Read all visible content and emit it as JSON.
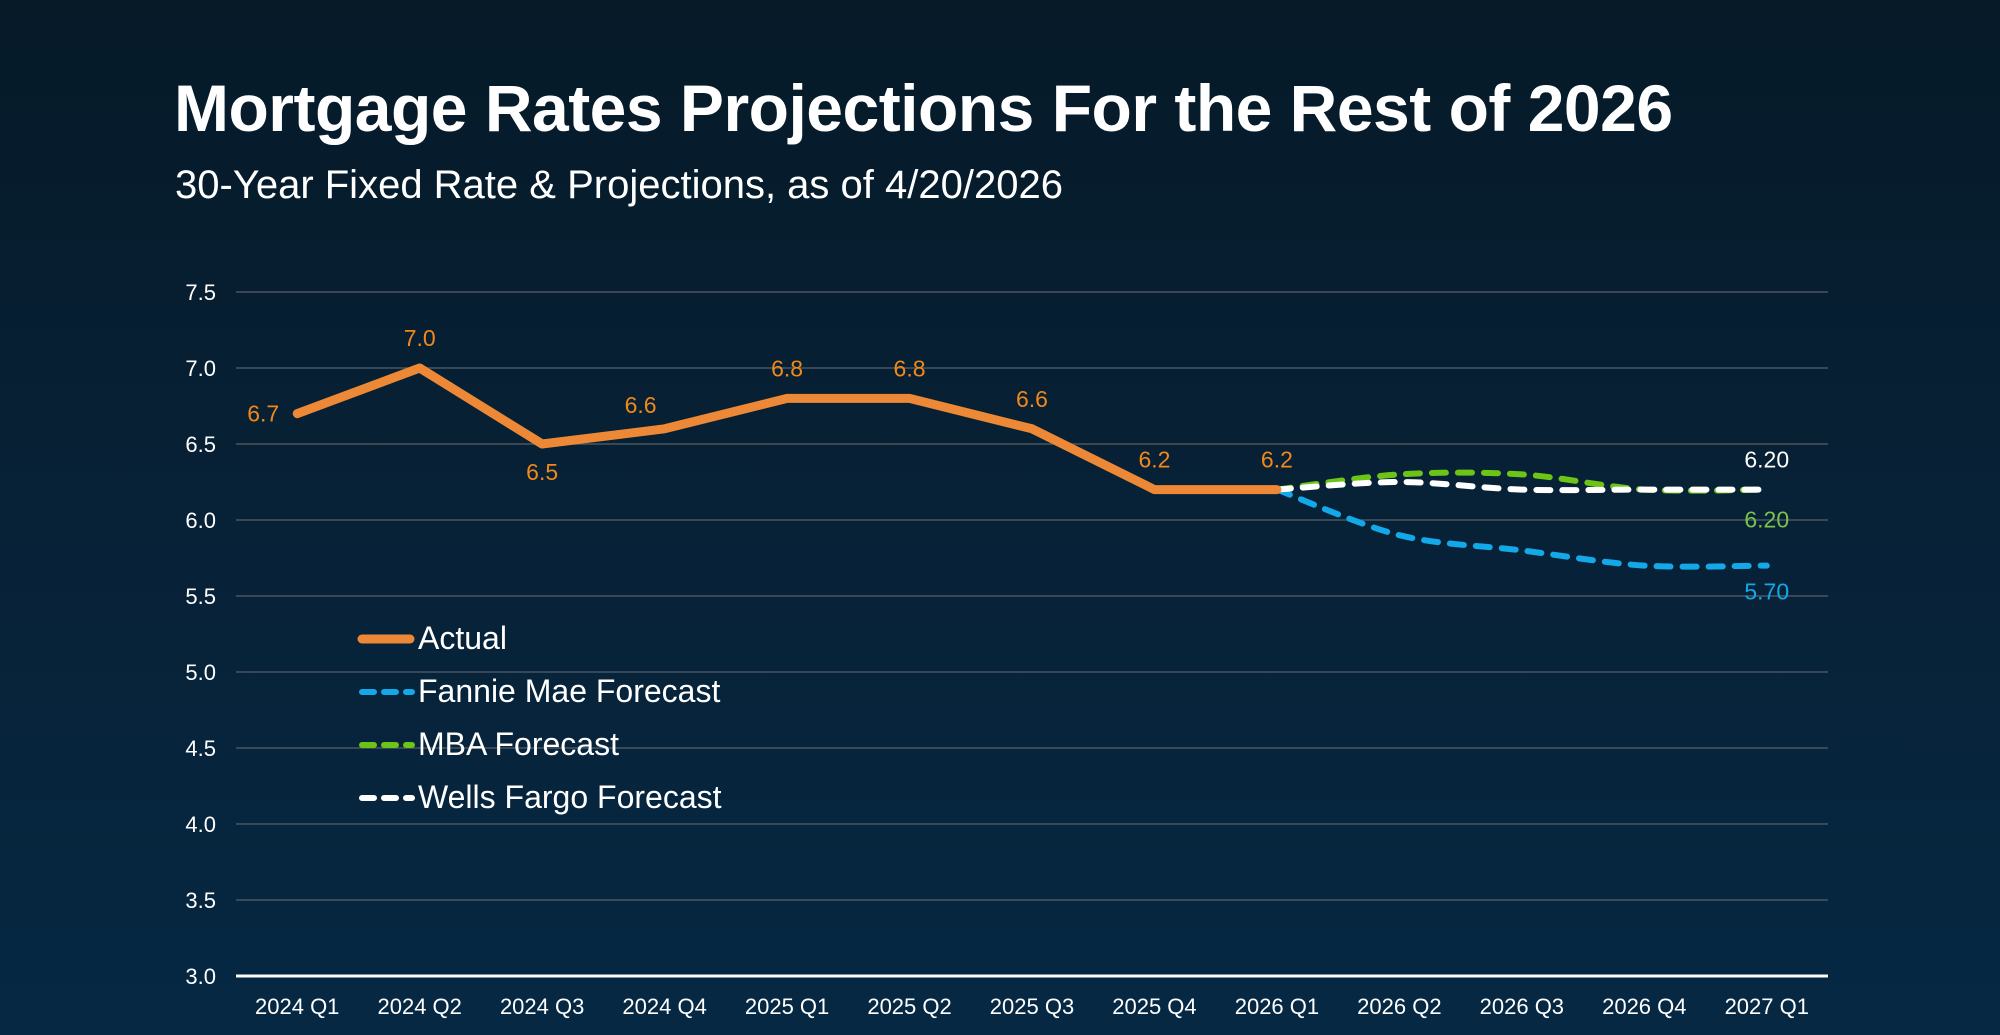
{
  "header": {
    "title": "Mortgage Rates Projections For the Rest of 2026",
    "subtitle": "30-Year Fixed Rate & Projections, as of 4/20/2026"
  },
  "colors": {
    "actual": "#ed8936",
    "actual_label": "#f2881a",
    "fannie": "#13a8e8",
    "mba": "#6cc417",
    "mba_label": "#7bc24a",
    "wells": "#ffffff",
    "grid": "#4a5560",
    "axis": "#ffffff"
  },
  "chart_data": {
    "type": "line",
    "title": "Mortgage Rates Projections For the Rest of 2026",
    "subtitle": "30-Year Fixed Rate & Projections, as of 4/20/2026",
    "xlabel": "",
    "ylabel": "",
    "ylim": [
      3.0,
      7.5
    ],
    "yticks": [
      "3.0",
      "3.5",
      "4.0",
      "4.5",
      "5.0",
      "5.5",
      "6.0",
      "6.5",
      "7.0",
      "7.5"
    ],
    "grid": true,
    "legend_position": "center-left",
    "categories": [
      "2024 Q1",
      "2024 Q2",
      "2024 Q3",
      "2024 Q4",
      "2025 Q1",
      "2025 Q2",
      "2025 Q3",
      "2025 Q4",
      "2026 Q1",
      "2026 Q2",
      "2026 Q3",
      "2026 Q4",
      "2027 Q1"
    ],
    "series": [
      {
        "name": "Actual",
        "style": "solid",
        "values": [
          6.7,
          7.0,
          6.5,
          6.6,
          6.8,
          6.8,
          6.6,
          6.2,
          6.2,
          null,
          null,
          null,
          null
        ],
        "labels": [
          "6.7",
          "7.0",
          "6.5",
          "6.6",
          "6.8",
          "6.8",
          "6.6",
          "6.2",
          "6.2",
          null,
          null,
          null,
          null
        ]
      },
      {
        "name": "Fannie Mae Forecast",
        "style": "dashed",
        "values": [
          null,
          null,
          null,
          null,
          null,
          null,
          null,
          null,
          6.2,
          5.9,
          5.8,
          5.7,
          5.7
        ],
        "labels": [
          null,
          null,
          null,
          null,
          null,
          null,
          null,
          null,
          null,
          null,
          null,
          null,
          "5.70"
        ]
      },
      {
        "name": "MBA Forecast",
        "style": "dashed",
        "values": [
          null,
          null,
          null,
          null,
          null,
          null,
          null,
          null,
          6.2,
          6.3,
          6.3,
          6.2,
          6.2
        ],
        "labels": [
          null,
          null,
          null,
          null,
          null,
          null,
          null,
          null,
          null,
          null,
          null,
          null,
          "6.20"
        ]
      },
      {
        "name": "Wells Fargo Forecast",
        "style": "dashed",
        "values": [
          null,
          null,
          null,
          null,
          null,
          null,
          null,
          null,
          6.2,
          6.25,
          6.2,
          6.2,
          6.2
        ],
        "labels": [
          null,
          null,
          null,
          null,
          null,
          null,
          null,
          null,
          null,
          null,
          null,
          null,
          "6.20"
        ]
      }
    ]
  },
  "legend": {
    "items": [
      {
        "label": "Actual"
      },
      {
        "label": "Fannie Mae Forecast"
      },
      {
        "label": "MBA Forecast"
      },
      {
        "label": "Wells Fargo Forecast"
      }
    ]
  }
}
